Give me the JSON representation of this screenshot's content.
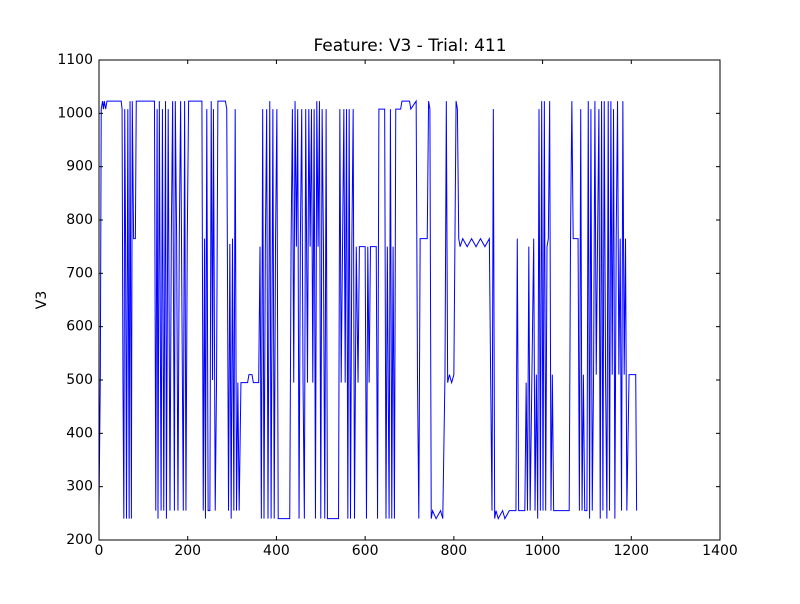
{
  "chart_data": {
    "type": "line",
    "title": "Feature: V3 - Trial: 411",
    "y_label": "V3",
    "x": [
      0,
      3,
      5,
      8,
      10,
      12,
      15,
      18,
      50,
      52,
      54,
      56,
      58,
      60,
      62,
      65,
      68,
      70,
      73,
      75,
      78,
      82,
      84,
      125,
      128,
      131,
      133,
      136,
      140,
      143,
      146,
      150,
      152,
      156,
      160,
      163,
      166,
      170,
      172,
      175,
      178,
      181,
      184,
      188,
      190,
      193,
      196,
      199,
      202,
      232,
      235,
      238,
      240,
      243,
      246,
      250,
      253,
      256,
      258,
      262,
      265,
      268,
      285,
      288,
      292,
      295,
      298,
      301,
      304,
      307,
      310,
      313,
      316,
      320,
      335,
      338,
      345,
      348,
      360,
      363,
      366,
      369,
      372,
      375,
      378,
      381,
      385,
      388,
      392,
      395,
      398,
      401,
      404,
      430,
      433,
      436,
      439,
      442,
      445,
      448,
      451,
      454,
      457,
      460,
      463,
      466,
      470,
      473,
      476,
      479,
      482,
      485,
      488,
      491,
      494,
      497,
      500,
      503,
      506,
      509,
      512,
      515,
      540,
      543,
      546,
      549,
      552,
      555,
      558,
      561,
      564,
      567,
      570,
      573,
      576,
      580,
      584,
      587,
      600,
      603,
      606,
      609,
      612,
      625,
      628,
      631,
      644,
      647,
      650,
      654,
      657,
      660,
      663,
      666,
      669,
      680,
      683,
      700,
      703,
      715,
      718,
      721,
      724,
      740,
      743,
      746,
      749,
      752,
      760,
      770,
      775,
      780,
      783,
      786,
      790,
      795,
      800,
      805,
      808,
      811,
      814,
      820,
      830,
      840,
      850,
      860,
      870,
      880,
      883,
      886,
      889,
      892,
      895,
      900,
      910,
      915,
      925,
      940,
      943,
      946,
      960,
      963,
      966,
      969,
      972,
      980,
      983,
      986,
      989,
      992,
      995,
      998,
      1001,
      1004,
      1007,
      1010,
      1013,
      1016,
      1019,
      1022,
      1025,
      1060,
      1063,
      1066,
      1069,
      1080,
      1083,
      1086,
      1089,
      1092,
      1095,
      1100,
      1103,
      1106,
      1109,
      1112,
      1115,
      1118,
      1121,
      1124,
      1127,
      1130,
      1133,
      1136,
      1139,
      1142,
      1145,
      1148,
      1151,
      1154,
      1157,
      1160,
      1163,
      1166,
      1169,
      1172,
      1175,
      1178,
      1181,
      1184,
      1187,
      1190,
      1195,
      1210,
      1212
    ],
    "series": [
      {
        "color": "#0000ff",
        "values": [
          255,
          510,
          1008,
          1023,
          1008,
          1023,
          1008,
          1023,
          1023,
          1008,
          500,
          240,
          1008,
          750,
          240,
          1008,
          240,
          1023,
          240,
          1023,
          765,
          765,
          1023,
          1023,
          255,
          1008,
          240,
          1023,
          255,
          1008,
          255,
          1023,
          240,
          1008,
          255,
          765,
          1023,
          255,
          1023,
          765,
          255,
          765,
          1023,
          500,
          255,
          1023,
          255,
          765,
          1023,
          1023,
          255,
          765,
          240,
          1008,
          255,
          255,
          1023,
          500,
          1008,
          255,
          500,
          1023,
          1023,
          1008,
          255,
          755,
          240,
          765,
          255,
          1008,
          255,
          495,
          255,
          495,
          495,
          510,
          510,
          495,
          495,
          750,
          240,
          1008,
          240,
          750,
          1008,
          240,
          1023,
          240,
          1008,
          240,
          765,
          1008,
          240,
          240,
          750,
          1008,
          495,
          1023,
          750,
          1008,
          240,
          765,
          1008,
          495,
          240,
          1008,
          495,
          1008,
          750,
          1008,
          495,
          1008,
          240,
          1023,
          750,
          1023,
          240,
          1008,
          750,
          240,
          1008,
          240,
          240,
          1008,
          495,
          750,
          1008,
          495,
          1008,
          240,
          1008,
          240,
          755,
          1008,
          240,
          750,
          495,
          750,
          750,
          240,
          750,
          495,
          750,
          750,
          240,
          1008,
          1008,
          240,
          750,
          240,
          1008,
          240,
          750,
          240,
          1008,
          1008,
          1023,
          1023,
          1008,
          1023,
          510,
          240,
          765,
          765,
          1023,
          1008,
          240,
          255,
          240,
          255,
          240,
          510,
          1023,
          495,
          510,
          495,
          510,
          1023,
          1008,
          765,
          750,
          765,
          750,
          765,
          750,
          765,
          750,
          765,
          500,
          255,
          1008,
          240,
          255,
          240,
          255,
          240,
          255,
          255,
          765,
          255,
          255,
          495,
          255,
          750,
          255,
          765,
          255,
          510,
          240,
          1008,
          255,
          1023,
          255,
          1023,
          255,
          750,
          765,
          1023,
          255,
          510,
          255,
          255,
          765,
          1023,
          765,
          765,
          255,
          1008,
          255,
          510,
          255,
          255,
          1023,
          240,
          1008,
          255,
          510,
          1023,
          510,
          765,
          1008,
          240,
          1023,
          255,
          1023,
          510,
          240,
          1023,
          255,
          1023,
          510,
          1008,
          240,
          765,
          1023,
          510,
          765,
          255,
          1023,
          510,
          765,
          255,
          510,
          510,
          255
        ]
      }
    ],
    "xlim": [
      0,
      1400
    ],
    "ylim": [
      200,
      1100
    ],
    "xticks": [
      0,
      200,
      400,
      600,
      800,
      1000,
      1200,
      1400
    ],
    "yticks": [
      200,
      300,
      400,
      500,
      600,
      700,
      800,
      900,
      1000,
      1100
    ]
  }
}
